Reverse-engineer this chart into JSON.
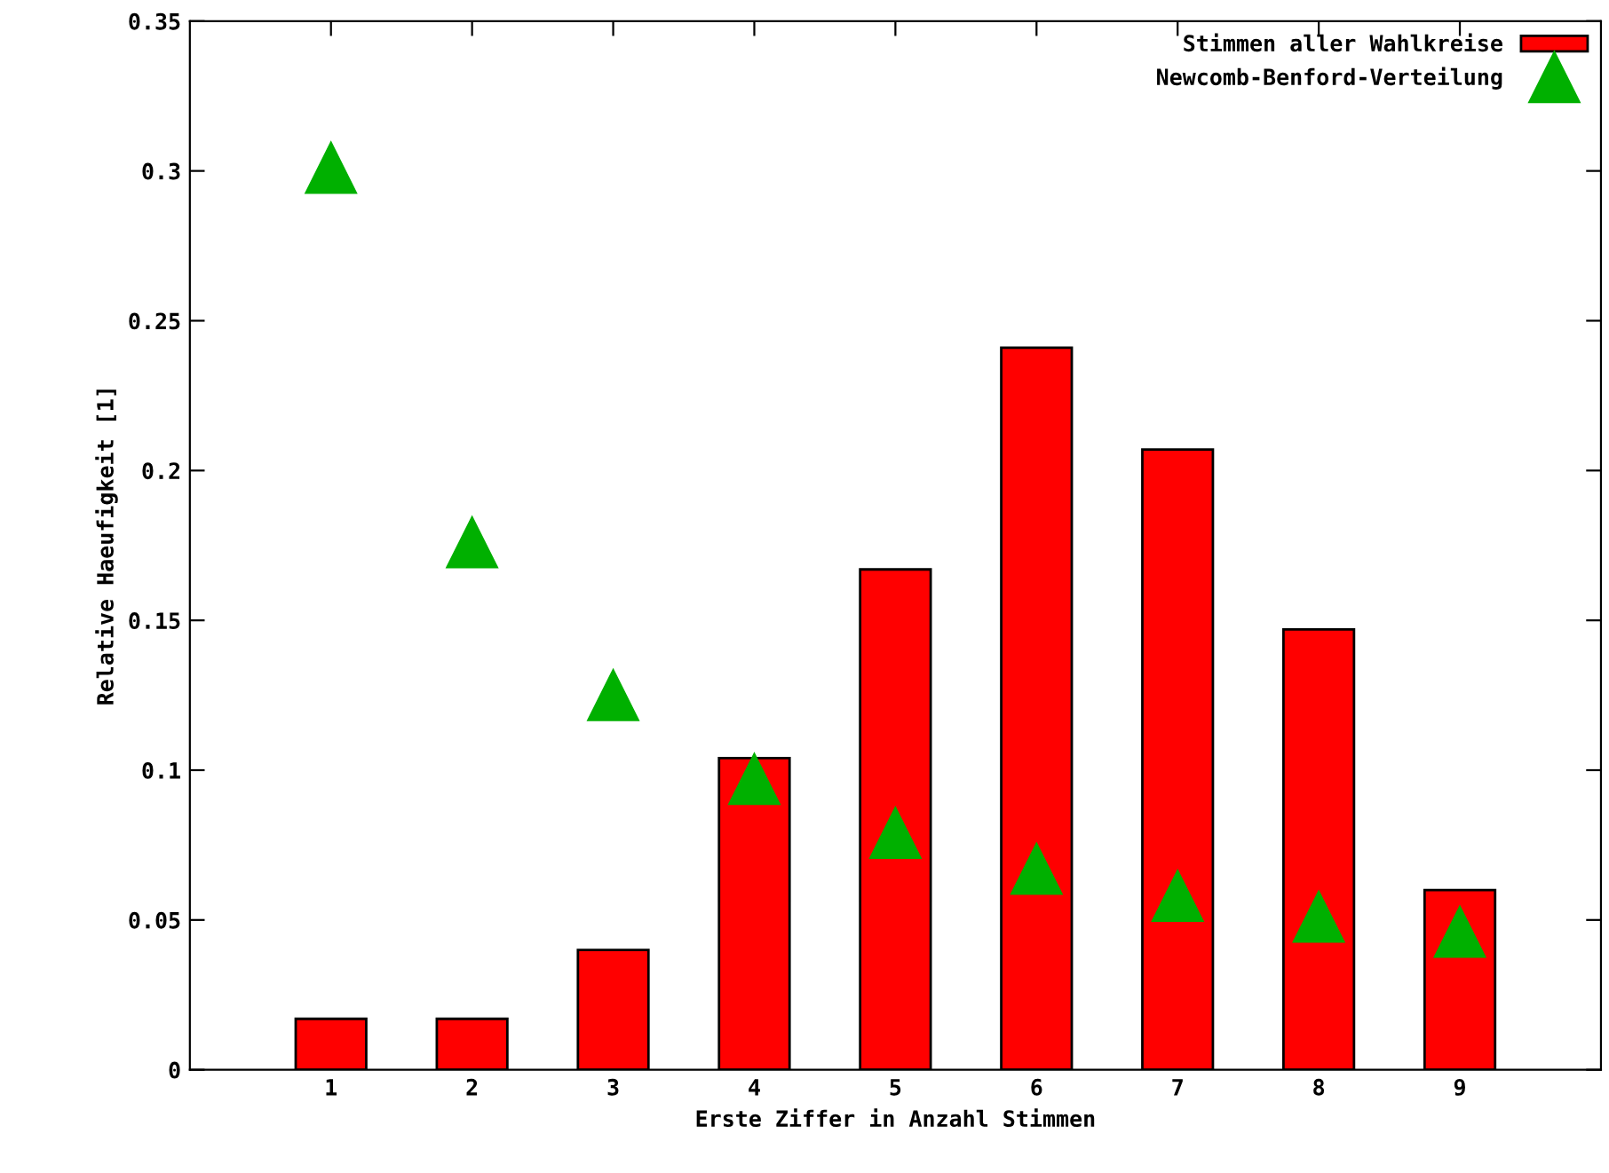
{
  "chart_data": {
    "type": "bar",
    "xlabel": "Erste Ziffer in Anzahl Stimmen",
    "ylabel": "Relative Haeufigkeit [1]",
    "x": [
      1,
      2,
      3,
      4,
      5,
      6,
      7,
      8,
      9
    ],
    "series": [
      {
        "name": "Stimmen aller Wahlkreise",
        "color": "#ff0000",
        "values": [
          0.017,
          0.017,
          0.04,
          0.104,
          0.167,
          0.241,
          0.207,
          0.147,
          0.06
        ]
      },
      {
        "name": "Newcomb-Benford-Verteilung",
        "type": "scatter",
        "color": "#00b000",
        "marker": "triangle",
        "values": [
          0.301,
          0.176,
          0.125,
          0.097,
          0.079,
          0.067,
          0.058,
          0.051,
          0.046
        ]
      }
    ],
    "xlim": [
      0,
      10
    ],
    "xticks": [
      1,
      2,
      3,
      4,
      5,
      6,
      7,
      8,
      9
    ],
    "ylim": [
      0,
      0.35
    ],
    "yticks": [
      0,
      0.05,
      0.1,
      0.15,
      0.2,
      0.25,
      0.3,
      0.35
    ],
    "grid": false,
    "legend": "top right"
  }
}
